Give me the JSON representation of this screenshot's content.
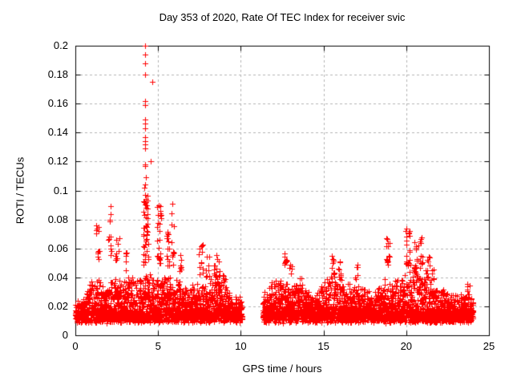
{
  "chart_data": {
    "type": "scatter",
    "title": "Day 353 of 2020, Rate Of TEC Index for receiver svic",
    "xlabel": "GPS time / hours",
    "ylabel": "ROTI / TECUs",
    "xlim": [
      0,
      25
    ],
    "ylim": [
      0,
      0.2
    ],
    "xticks": [
      0,
      5,
      10,
      15,
      20,
      25
    ],
    "xtick_labels": [
      "0",
      "5",
      "10",
      "15",
      "20",
      "25"
    ],
    "yticks": [
      0,
      0.02,
      0.04,
      0.06,
      0.08,
      0.1,
      0.12,
      0.14,
      0.16,
      0.18,
      0.2
    ],
    "ytick_labels": [
      "0",
      "0.02",
      "0.04",
      "0.06",
      "0.08",
      "0.1",
      "0.12",
      "0.14",
      "0.16",
      "0.18",
      "0.2"
    ],
    "marker": "plus",
    "marker_color": "#ff0000",
    "grid": {
      "show": true,
      "style": "dashed",
      "color": "#b3b3b3"
    },
    "legend": "none",
    "data_gap_hours": [
      10.08,
      11.33
    ],
    "max_point": {
      "x": 4.22,
      "y": 0.2
    },
    "segments": [
      {
        "start": 0.0,
        "end": 10.08
      },
      {
        "start": 11.33,
        "end": 24.05
      }
    ],
    "density_profile": [
      [
        0.0,
        0.024
      ],
      [
        0.3,
        0.028
      ],
      [
        0.7,
        0.034
      ],
      [
        1.0,
        0.04
      ],
      [
        1.4,
        0.043
      ],
      [
        1.8,
        0.036
      ],
      [
        2.2,
        0.042
      ],
      [
        2.6,
        0.045
      ],
      [
        3.0,
        0.04
      ],
      [
        3.4,
        0.043
      ],
      [
        3.8,
        0.04
      ],
      [
        4.2,
        0.048
      ],
      [
        4.6,
        0.044
      ],
      [
        5.0,
        0.047
      ],
      [
        5.4,
        0.044
      ],
      [
        5.8,
        0.042
      ],
      [
        6.2,
        0.04
      ],
      [
        6.6,
        0.036
      ],
      [
        7.0,
        0.036
      ],
      [
        7.4,
        0.042
      ],
      [
        7.8,
        0.038
      ],
      [
        8.2,
        0.042
      ],
      [
        8.6,
        0.046
      ],
      [
        9.0,
        0.038
      ],
      [
        9.4,
        0.032
      ],
      [
        9.7,
        0.03
      ],
      [
        10.08,
        0.026
      ],
      [
        11.33,
        0.032
      ],
      [
        11.7,
        0.036
      ],
      [
        12.0,
        0.04
      ],
      [
        12.4,
        0.042
      ],
      [
        12.8,
        0.038
      ],
      [
        13.2,
        0.04
      ],
      [
        13.6,
        0.042
      ],
      [
        14.0,
        0.032
      ],
      [
        14.4,
        0.03
      ],
      [
        14.8,
        0.034
      ],
      [
        15.2,
        0.04
      ],
      [
        15.6,
        0.046
      ],
      [
        16.0,
        0.042
      ],
      [
        16.4,
        0.036
      ],
      [
        16.8,
        0.04
      ],
      [
        17.2,
        0.036
      ],
      [
        17.6,
        0.032
      ],
      [
        18.0,
        0.032
      ],
      [
        18.4,
        0.034
      ],
      [
        18.8,
        0.042
      ],
      [
        19.2,
        0.04
      ],
      [
        19.6,
        0.04
      ],
      [
        20.0,
        0.048
      ],
      [
        20.4,
        0.05
      ],
      [
        20.8,
        0.048
      ],
      [
        21.2,
        0.046
      ],
      [
        21.6,
        0.04
      ],
      [
        22.0,
        0.036
      ],
      [
        22.4,
        0.032
      ],
      [
        22.8,
        0.03
      ],
      [
        23.2,
        0.03
      ],
      [
        23.6,
        0.032
      ],
      [
        24.05,
        0.026
      ]
    ],
    "spike_clusters": [
      {
        "x": 1.35,
        "w": 0.1,
        "y0": 0.052,
        "y1": 0.082,
        "n": 12
      },
      {
        "x": 2.1,
        "w": 0.1,
        "y0": 0.055,
        "y1": 0.088,
        "n": 12
      },
      {
        "x": 2.55,
        "w": 0.12,
        "y0": 0.048,
        "y1": 0.068,
        "n": 10
      },
      {
        "x": 3.05,
        "w": 0.08,
        "y0": 0.045,
        "y1": 0.062,
        "n": 6
      },
      {
        "x": 4.25,
        "w": 0.15,
        "y0": 0.048,
        "y1": 0.098,
        "n": 42
      },
      {
        "x": 5.05,
        "w": 0.12,
        "y0": 0.048,
        "y1": 0.091,
        "n": 26
      },
      {
        "x": 5.6,
        "w": 0.1,
        "y0": 0.048,
        "y1": 0.075,
        "n": 14
      },
      {
        "x": 5.9,
        "w": 0.08,
        "y0": 0.048,
        "y1": 0.091,
        "n": 12
      },
      {
        "x": 6.3,
        "w": 0.1,
        "y0": 0.044,
        "y1": 0.062,
        "n": 8
      },
      {
        "x": 7.55,
        "w": 0.15,
        "y0": 0.042,
        "y1": 0.065,
        "n": 12
      },
      {
        "x": 8.0,
        "w": 0.1,
        "y0": 0.04,
        "y1": 0.055,
        "n": 8
      },
      {
        "x": 8.55,
        "w": 0.2,
        "y0": 0.04,
        "y1": 0.056,
        "n": 12
      },
      {
        "x": 9.0,
        "w": 0.1,
        "y0": 0.038,
        "y1": 0.05,
        "n": 6
      },
      {
        "x": 12.7,
        "w": 0.09,
        "y0": 0.049,
        "y1": 0.057,
        "n": 10
      },
      {
        "x": 13.0,
        "w": 0.08,
        "y0": 0.04,
        "y1": 0.05,
        "n": 6
      },
      {
        "x": 15.55,
        "w": 0.15,
        "y0": 0.04,
        "y1": 0.057,
        "n": 10
      },
      {
        "x": 16.0,
        "w": 0.1,
        "y0": 0.04,
        "y1": 0.052,
        "n": 8
      },
      {
        "x": 17.0,
        "w": 0.08,
        "y0": 0.038,
        "y1": 0.05,
        "n": 6
      },
      {
        "x": 18.9,
        "w": 0.12,
        "y0": 0.046,
        "y1": 0.067,
        "n": 14
      },
      {
        "x": 20.1,
        "w": 0.15,
        "y0": 0.048,
        "y1": 0.075,
        "n": 22
      },
      {
        "x": 20.55,
        "w": 0.1,
        "y0": 0.044,
        "y1": 0.065,
        "n": 12
      },
      {
        "x": 20.85,
        "w": 0.12,
        "y0": 0.044,
        "y1": 0.07,
        "n": 14
      },
      {
        "x": 21.3,
        "w": 0.12,
        "y0": 0.04,
        "y1": 0.058,
        "n": 10
      },
      {
        "x": 21.6,
        "w": 0.08,
        "y0": 0.038,
        "y1": 0.052,
        "n": 6
      },
      {
        "x": 23.75,
        "w": 0.1,
        "y0": 0.028,
        "y1": 0.037,
        "n": 8
      }
    ],
    "outlier_points": [
      [
        4.22,
        0.2
      ],
      [
        4.23,
        0.194
      ],
      [
        4.22,
        0.188
      ],
      [
        4.23,
        0.18
      ],
      [
        4.65,
        0.175
      ],
      [
        4.2,
        0.162
      ],
      [
        4.22,
        0.159
      ],
      [
        4.23,
        0.149
      ],
      [
        4.21,
        0.146
      ],
      [
        4.2,
        0.143
      ],
      [
        4.23,
        0.137
      ],
      [
        4.2,
        0.134
      ],
      [
        4.22,
        0.132
      ],
      [
        4.2,
        0.129
      ],
      [
        4.55,
        0.12
      ],
      [
        4.23,
        0.118
      ],
      [
        4.2,
        0.117
      ],
      [
        4.24,
        0.109
      ],
      [
        4.21,
        0.104
      ],
      [
        4.18,
        0.102
      ],
      [
        4.22,
        0.097
      ],
      [
        4.26,
        0.094
      ],
      [
        4.19,
        0.092
      ],
      [
        5.86,
        0.091
      ],
      [
        5.05,
        0.09
      ],
      [
        2.12,
        0.089
      ]
    ]
  }
}
